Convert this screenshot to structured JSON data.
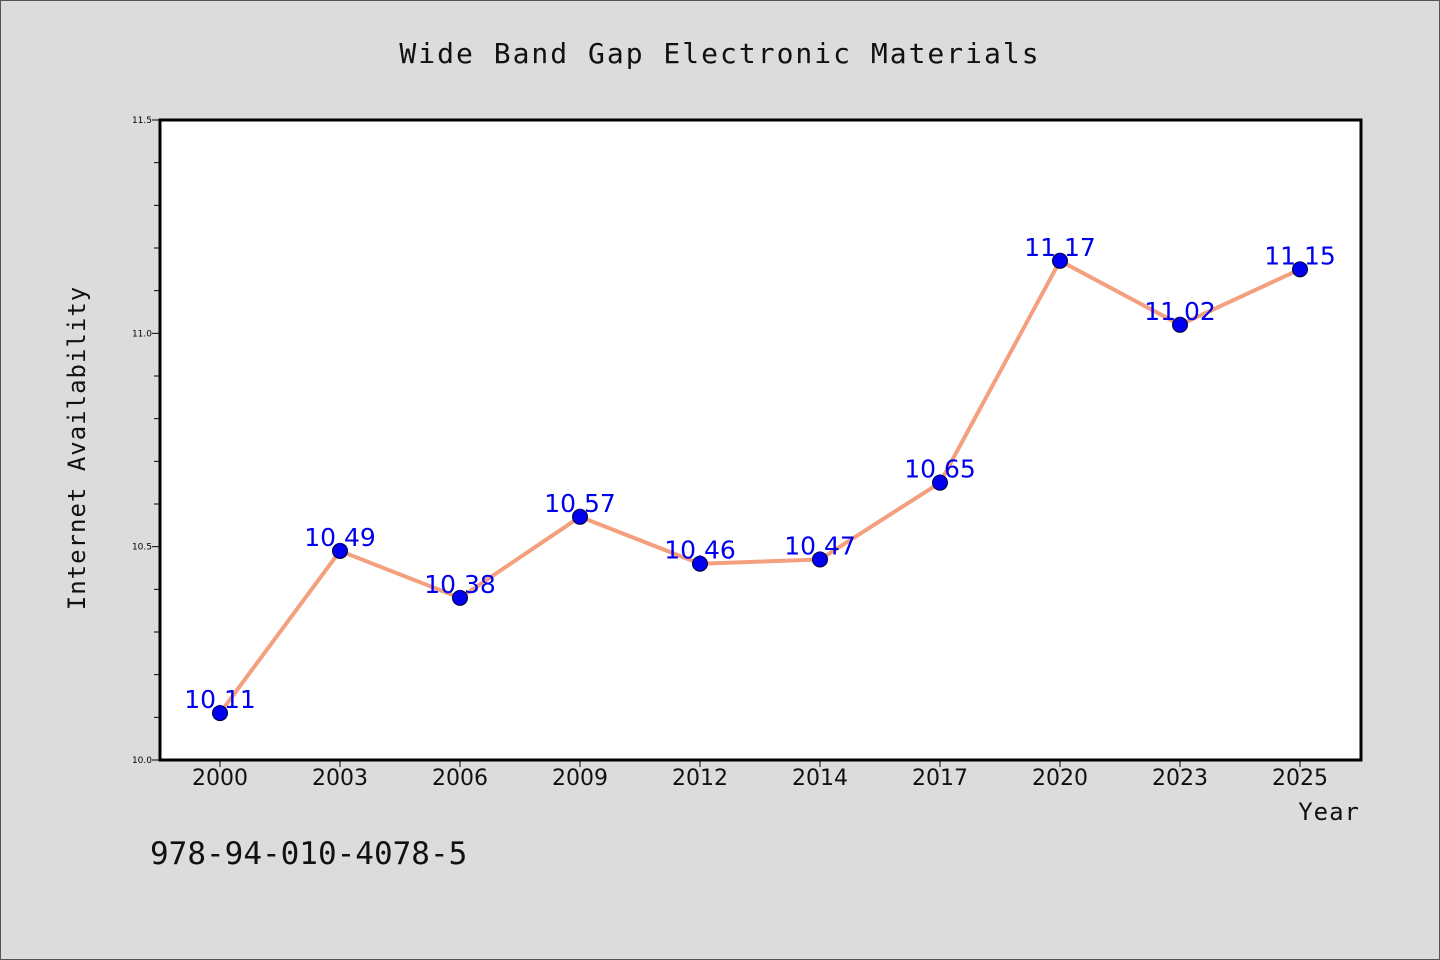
{
  "chart_data": {
    "type": "line",
    "title": "Wide Band Gap Electronic Materials",
    "xlabel": "Year",
    "ylabel": "Internet Availability",
    "categories": [
      "2000",
      "2003",
      "2006",
      "2009",
      "2012",
      "2014",
      "2017",
      "2020",
      "2023",
      "2025"
    ],
    "values": [
      10.11,
      10.49,
      10.38,
      10.57,
      10.46,
      10.47,
      10.65,
      11.17,
      11.02,
      11.15
    ],
    "data_labels": [
      "10.11",
      "10.49",
      "10.38",
      "10.57",
      "10.46",
      "10.47",
      "10.65",
      "11.17",
      "11.02",
      "11.15"
    ],
    "ylim": [
      10.0,
      11.5
    ],
    "yticks": [
      10.0,
      10.5,
      11.0,
      11.5
    ],
    "ytick_labels": [
      "10.0",
      "10.5",
      "11.0",
      "11.5"
    ],
    "ytick_minor_step": 0.1,
    "grid": false,
    "legend": "none",
    "line_color": "#f4a07e",
    "marker_color": "#0000ee",
    "label_color": "#0000ee"
  },
  "annotation": {
    "isbn": "978-94-010-4078-5"
  }
}
